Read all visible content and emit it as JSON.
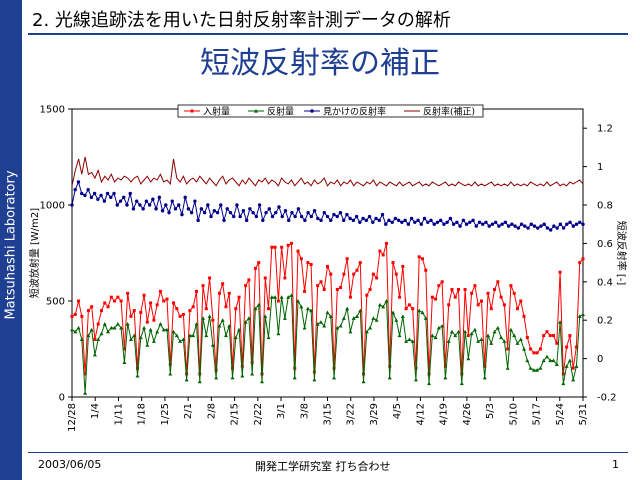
{
  "sidebar": {
    "text": "Matsuhashi Laboratory"
  },
  "header": {
    "title": "2. 光線追跡法を用いた日射反射率計測データの解析"
  },
  "slide": {
    "title": "短波反射率の補正"
  },
  "footer": {
    "date": "2003/06/05",
    "lab": "開発工学研究室 打ち合わせ",
    "page": "1"
  },
  "colors": {
    "incident": "#ff0000",
    "reflected": "#006400",
    "apparent": "#00008b",
    "corrected": "#8b0000",
    "accent": "#1f3f92"
  },
  "chart_data": {
    "type": "line",
    "x_ticks": [
      "12/28",
      "1/4",
      "1/11",
      "1/18",
      "1/25",
      "2/1",
      "2/8",
      "2/15",
      "2/22",
      "3/1",
      "3/8",
      "3/15",
      "3/22",
      "3/29",
      "4/5",
      "4/12",
      "4/19",
      "4/26",
      "5/3",
      "5/10",
      "5/17",
      "5/24",
      "5/31"
    ],
    "ylabel_left": "短波放射量 [W/m2]",
    "ylabel_right": "短波反射率 [-]",
    "ylim_left": [
      0,
      1500
    ],
    "yticks_left": [
      "0",
      "500",
      "1000",
      "1500"
    ],
    "ylim_right": [
      -0.2,
      1.3
    ],
    "yticks_right": [
      "-0.2",
      "0",
      "0.2",
      "0.4",
      "0.6",
      "0.8",
      "1",
      "1.2"
    ],
    "grid": true,
    "legend_position": "top",
    "series": [
      {
        "name": "入射量",
        "axis": "left",
        "values": [
          420,
          430,
          500,
          420,
          120,
          450,
          470,
          300,
          380,
          450,
          490,
          470,
          520,
          500,
          520,
          500,
          250,
          540,
          420,
          450,
          150,
          440,
          530,
          390,
          490,
          400,
          480,
          550,
          500,
          510,
          170,
          490,
          460,
          420,
          430,
          120,
          450,
          470,
          550,
          120,
          580,
          460,
          620,
          400,
          140,
          540,
          590,
          470,
          540,
          150,
          460,
          520,
          160,
          580,
          610,
          180,
          670,
          700,
          120,
          620,
          460,
          780,
          780,
          500,
          780,
          620,
          790,
          800,
          150,
          760,
          720,
          550,
          700,
          690,
          130,
          580,
          600,
          560,
          680,
          640,
          150,
          560,
          570,
          640,
          720,
          520,
          640,
          660,
          700,
          120,
          530,
          560,
          640,
          620,
          760,
          740,
          800,
          160,
          700,
          640,
          520,
          680,
          460,
          480,
          460,
          150,
          730,
          720,
          660,
          120,
          520,
          510,
          580,
          600,
          160,
          480,
          560,
          520,
          560,
          120,
          560,
          320,
          540,
          580,
          480,
          500,
          160,
          540,
          460,
          560,
          600,
          520,
          480,
          250,
          580,
          540,
          460,
          500,
          420,
          310,
          250,
          230,
          230,
          250,
          320,
          340,
          320,
          320,
          280,
          650,
          120,
          260,
          320,
          150,
          260,
          700,
          720
        ]
      },
      {
        "name": "反射量",
        "axis": "left",
        "values": [
          350,
          340,
          360,
          300,
          20,
          320,
          350,
          220,
          300,
          330,
          380,
          340,
          360,
          360,
          380,
          360,
          180,
          380,
          300,
          320,
          110,
          310,
          360,
          270,
          350,
          290,
          340,
          380,
          350,
          350,
          120,
          340,
          320,
          290,
          300,
          90,
          320,
          320,
          380,
          80,
          410,
          320,
          420,
          270,
          100,
          370,
          400,
          320,
          370,
          100,
          310,
          350,
          110,
          390,
          410,
          120,
          460,
          480,
          80,
          420,
          310,
          520,
          520,
          330,
          520,
          410,
          520,
          530,
          100,
          500,
          470,
          360,
          460,
          450,
          90,
          380,
          390,
          370,
          440,
          420,
          100,
          360,
          370,
          410,
          460,
          340,
          410,
          420,
          450,
          80,
          340,
          360,
          410,
          400,
          480,
          470,
          500,
          100,
          440,
          400,
          320,
          420,
          290,
          300,
          290,
          90,
          450,
          440,
          410,
          70,
          320,
          310,
          360,
          370,
          100,
          290,
          340,
          320,
          340,
          70,
          340,
          200,
          330,
          350,
          290,
          300,
          100,
          320,
          280,
          340,
          360,
          310,
          290,
          150,
          350,
          320,
          280,
          300,
          250,
          190,
          150,
          140,
          140,
          150,
          190,
          210,
          190,
          190,
          170,
          390,
          70,
          160,
          190,
          90,
          160,
          420,
          430
        ]
      },
      {
        "name": "見かけの反射率",
        "axis": "right",
        "values": [
          0.8,
          0.88,
          0.92,
          0.86,
          0.85,
          0.88,
          0.84,
          0.86,
          0.83,
          0.85,
          0.82,
          0.86,
          0.84,
          0.86,
          0.8,
          0.82,
          0.84,
          0.8,
          0.86,
          0.78,
          0.82,
          0.8,
          0.78,
          0.82,
          0.8,
          0.83,
          0.78,
          0.84,
          0.77,
          0.8,
          0.76,
          0.82,
          0.78,
          0.8,
          0.75,
          0.84,
          0.78,
          0.76,
          0.82,
          0.72,
          0.78,
          0.76,
          0.8,
          0.74,
          0.77,
          0.76,
          0.8,
          0.72,
          0.78,
          0.76,
          0.74,
          0.8,
          0.74,
          0.77,
          0.72,
          0.78,
          0.76,
          0.74,
          0.8,
          0.72,
          0.76,
          0.78,
          0.74,
          0.76,
          0.79,
          0.74,
          0.77,
          0.72,
          0.76,
          0.74,
          0.78,
          0.74,
          0.72,
          0.76,
          0.74,
          0.77,
          0.73,
          0.72,
          0.76,
          0.74,
          0.72,
          0.75,
          0.74,
          0.76,
          0.72,
          0.75,
          0.73,
          0.72,
          0.74,
          0.71,
          0.73,
          0.72,
          0.74,
          0.71,
          0.73,
          0.72,
          0.75,
          0.7,
          0.72,
          0.71,
          0.73,
          0.72,
          0.71,
          0.72,
          0.7,
          0.73,
          0.71,
          0.72,
          0.7,
          0.73,
          0.71,
          0.72,
          0.7,
          0.71,
          0.72,
          0.7,
          0.71,
          0.73,
          0.7,
          0.71,
          0.69,
          0.72,
          0.7,
          0.71,
          0.72,
          0.69,
          0.71,
          0.7,
          0.71,
          0.69,
          0.7,
          0.71,
          0.69,
          0.7,
          0.71,
          0.69,
          0.7,
          0.69,
          0.68,
          0.7,
          0.69,
          0.68,
          0.7,
          0.69,
          0.68,
          0.69,
          0.7,
          0.68,
          0.67,
          0.69,
          0.68,
          0.7,
          0.68,
          0.7,
          0.71,
          0.69,
          0.7,
          0.71,
          0.7
        ]
      },
      {
        "name": "反射率(補正)",
        "axis": "right",
        "values": [
          0.9,
          0.98,
          1.04,
          0.96,
          1.05,
          0.96,
          0.97,
          0.94,
          0.98,
          0.92,
          0.95,
          0.93,
          0.96,
          0.92,
          0.94,
          0.93,
          0.95,
          0.94,
          0.92,
          0.94,
          0.95,
          0.91,
          0.93,
          0.95,
          0.92,
          0.94,
          0.93,
          0.96,
          0.92,
          0.93,
          0.91,
          1.04,
          0.94,
          0.92,
          0.95,
          0.91,
          0.93,
          0.94,
          0.92,
          0.95,
          0.93,
          0.91,
          0.94,
          0.92,
          0.9,
          0.93,
          0.95,
          0.91,
          0.93,
          0.94,
          0.92,
          0.9,
          0.93,
          0.91,
          0.94,
          0.92,
          0.9,
          0.93,
          0.92,
          0.94,
          0.91,
          0.93,
          0.92,
          0.9,
          0.94,
          0.92,
          0.91,
          0.93,
          0.9,
          0.92,
          0.94,
          0.91,
          0.92,
          0.9,
          0.93,
          0.91,
          0.92,
          0.94,
          0.9,
          0.92,
          0.91,
          0.93,
          0.9,
          0.92,
          0.91,
          0.93,
          0.9,
          0.92,
          0.91,
          0.9,
          0.92,
          0.91,
          0.93,
          0.9,
          0.92,
          0.91,
          0.9,
          0.92,
          0.91,
          0.9,
          0.92,
          0.9,
          0.91,
          0.92,
          0.9,
          0.91,
          0.92,
          0.9,
          0.91,
          0.9,
          0.92,
          0.91,
          0.9,
          0.91,
          0.92,
          0.9,
          0.91,
          0.9,
          0.92,
          0.91,
          0.9,
          0.91,
          0.9,
          0.92,
          0.9,
          0.91,
          0.9,
          0.91,
          0.92,
          0.9,
          0.91,
          0.9,
          0.91,
          0.9,
          0.92,
          0.9,
          0.91,
          0.9,
          0.91,
          0.9,
          0.92,
          0.91,
          0.9,
          0.91,
          0.9,
          0.92,
          0.9,
          0.91,
          0.92,
          0.9,
          0.91,
          0.9,
          0.92,
          0.91,
          0.92,
          0.93,
          0.91
        ]
      }
    ]
  }
}
